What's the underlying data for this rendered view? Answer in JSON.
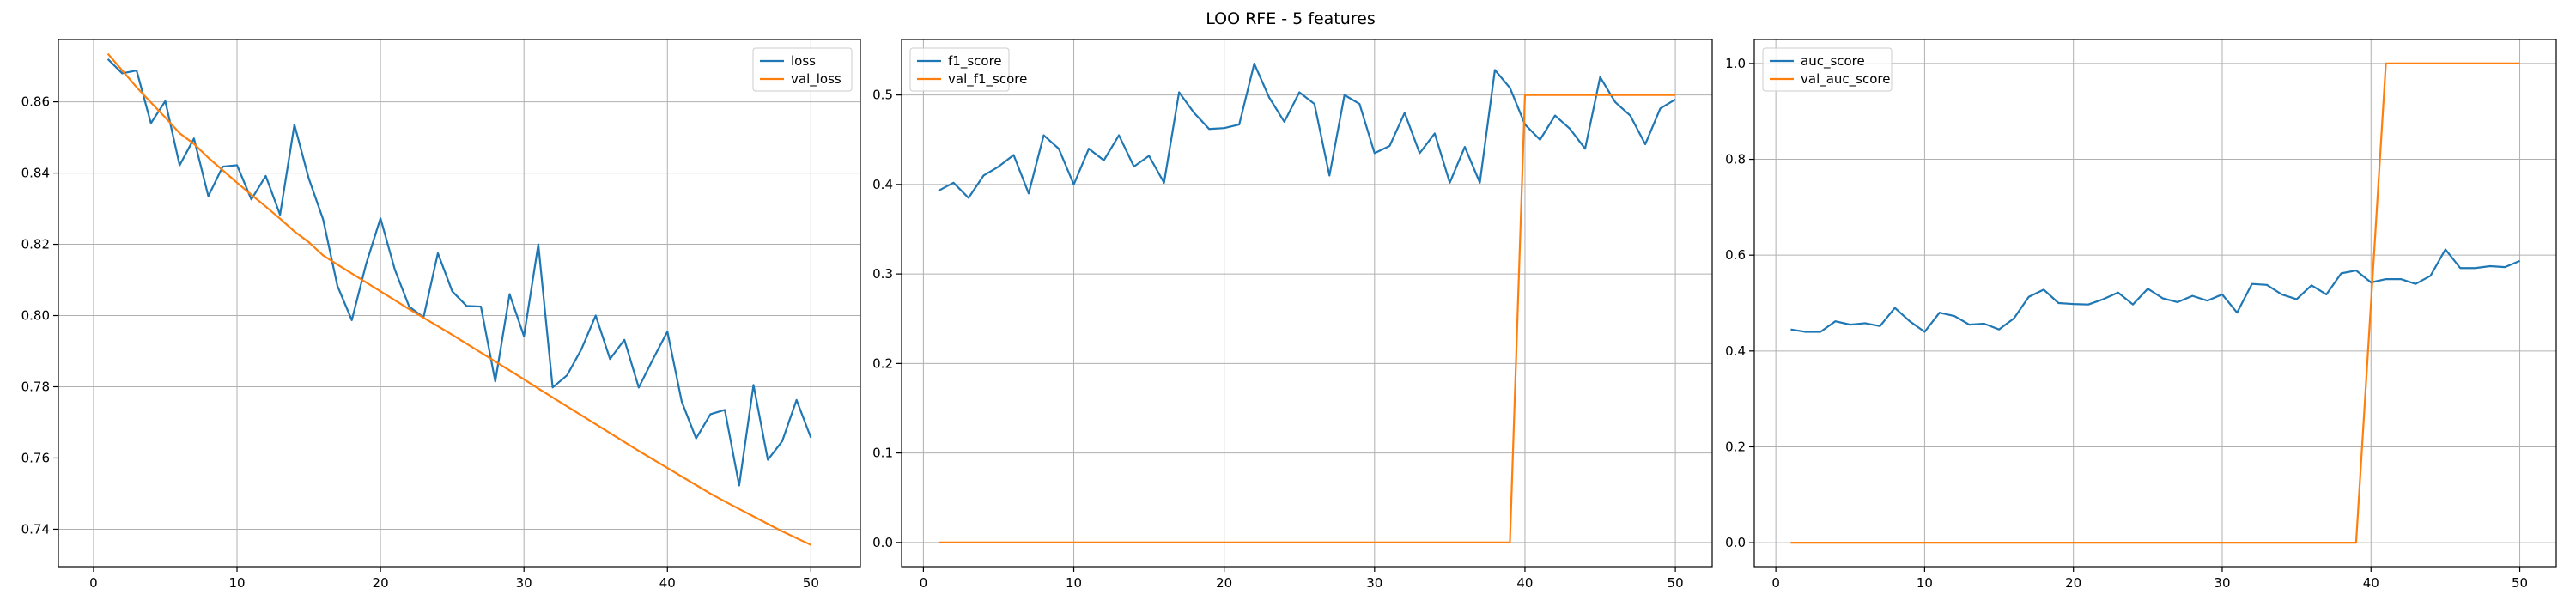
{
  "figure": {
    "title": "LOO RFE - 5 features"
  },
  "chart_data": [
    {
      "type": "line",
      "title": "",
      "xlabel": "",
      "ylabel": "",
      "xlim": [
        -2.45,
        53.45
      ],
      "ylim": [
        0.7295,
        0.8775
      ],
      "xticks": [
        0,
        10,
        20,
        30,
        40,
        50
      ],
      "yticks": [
        0.74,
        0.76,
        0.78,
        0.8,
        0.82,
        0.84,
        0.86
      ],
      "ytick_labels": [
        "0.74",
        "0.76",
        "0.78",
        "0.80",
        "0.82",
        "0.84",
        "0.86"
      ],
      "grid": true,
      "legend_position": "top-right",
      "x": [
        1,
        2,
        3,
        4,
        5,
        6,
        7,
        8,
        9,
        10,
        11,
        12,
        13,
        14,
        15,
        16,
        17,
        18,
        19,
        20,
        21,
        22,
        23,
        24,
        25,
        26,
        27,
        28,
        29,
        30,
        31,
        32,
        33,
        34,
        35,
        36,
        37,
        38,
        39,
        40,
        41,
        42,
        43,
        44,
        45,
        46,
        47,
        48,
        49,
        50
      ],
      "series": [
        {
          "name": "loss",
          "color": "#1f77b4",
          "values": [
            0.872,
            0.868,
            0.8688,
            0.854,
            0.8602,
            0.8422,
            0.8497,
            0.8335,
            0.8418,
            0.8422,
            0.8326,
            0.8392,
            0.8283,
            0.8536,
            0.8385,
            0.827,
            0.8083,
            0.7987,
            0.8145,
            0.8273,
            0.8129,
            0.8025,
            0.7995,
            0.8175,
            0.8068,
            0.8027,
            0.8025,
            0.7815,
            0.806,
            0.7942,
            0.82,
            0.7798,
            0.7832,
            0.7905,
            0.8,
            0.7878,
            0.7932,
            0.7798,
            0.7878,
            0.7955,
            0.7758,
            0.7655,
            0.7723,
            0.7735,
            0.7523,
            0.7805,
            0.7595,
            0.7647,
            0.7763,
            0.7657
          ]
        },
        {
          "name": "val_loss",
          "color": "#ff7f0e",
          "values": [
            0.8735,
            0.8688,
            0.8641,
            0.8598,
            0.8556,
            0.8512,
            0.8482,
            0.8443,
            0.8408,
            0.8373,
            0.8339,
            0.8306,
            0.8272,
            0.8236,
            0.8206,
            0.8169,
            0.8143,
            0.8118,
            0.8093,
            0.8068,
            0.8043,
            0.8018,
            0.7994,
            0.797,
            0.7946,
            0.7921,
            0.7896,
            0.7871,
            0.7846,
            0.7821,
            0.7795,
            0.777,
            0.7745,
            0.772,
            0.7695,
            0.767,
            0.7645,
            0.762,
            0.7596,
            0.7572,
            0.7548,
            0.7524,
            0.75,
            0.7478,
            0.7457,
            0.7436,
            0.7415,
            0.7394,
            0.7375,
            0.7356
          ]
        }
      ]
    },
    {
      "type": "line",
      "title": "",
      "xlabel": "",
      "ylabel": "",
      "xlim": [
        -1.45,
        52.45
      ],
      "ylim": [
        -0.027,
        0.562
      ],
      "xticks": [
        0,
        10,
        20,
        30,
        40,
        50
      ],
      "yticks": [
        0.0,
        0.1,
        0.2,
        0.3,
        0.4,
        0.5
      ],
      "ytick_labels": [
        "0.0",
        "0.1",
        "0.2",
        "0.3",
        "0.4",
        "0.5"
      ],
      "grid": true,
      "legend_position": "top-left",
      "x": [
        1,
        2,
        3,
        4,
        5,
        6,
        7,
        8,
        9,
        10,
        11,
        12,
        13,
        14,
        15,
        16,
        17,
        18,
        19,
        20,
        21,
        22,
        23,
        24,
        25,
        26,
        27,
        28,
        29,
        30,
        31,
        32,
        33,
        34,
        35,
        36,
        37,
        38,
        39,
        40,
        41,
        42,
        43,
        44,
        45,
        46,
        47,
        48,
        49,
        50
      ],
      "series": [
        {
          "name": "f1_score",
          "color": "#1f77b4",
          "values": [
            0.393,
            0.402,
            0.385,
            0.41,
            0.42,
            0.433,
            0.39,
            0.455,
            0.44,
            0.4,
            0.44,
            0.427,
            0.455,
            0.42,
            0.432,
            0.402,
            0.503,
            0.48,
            0.462,
            0.463,
            0.467,
            0.535,
            0.497,
            0.47,
            0.503,
            0.49,
            0.41,
            0.5,
            0.49,
            0.435,
            0.443,
            0.48,
            0.435,
            0.457,
            0.402,
            0.442,
            0.402,
            0.528,
            0.508,
            0.467,
            0.45,
            0.477,
            0.462,
            0.44,
            0.52,
            0.492,
            0.477,
            0.445,
            0.485,
            0.495
          ]
        },
        {
          "name": "val_f1_score",
          "color": "#ff7f0e",
          "values": [
            0,
            0,
            0,
            0,
            0,
            0,
            0,
            0,
            0,
            0,
            0,
            0,
            0,
            0,
            0,
            0,
            0,
            0,
            0,
            0,
            0,
            0,
            0,
            0,
            0,
            0,
            0,
            0,
            0,
            0,
            0,
            0,
            0,
            0,
            0,
            0,
            0,
            0,
            0,
            0.5,
            0.5,
            0.5,
            0.5,
            0.5,
            0.5,
            0.5,
            0.5,
            0.5,
            0.5,
            0.5
          ]
        }
      ]
    },
    {
      "type": "line",
      "title": "",
      "xlabel": "",
      "ylabel": "",
      "xlim": [
        -1.45,
        52.45
      ],
      "ylim": [
        -0.05,
        1.05
      ],
      "xticks": [
        0,
        10,
        20,
        30,
        40,
        50
      ],
      "yticks": [
        0.0,
        0.2,
        0.4,
        0.6,
        0.8,
        1.0
      ],
      "ytick_labels": [
        "0.0",
        "0.2",
        "0.4",
        "0.6",
        "0.8",
        "1.0"
      ],
      "grid": true,
      "legend_position": "top-left",
      "x": [
        1,
        2,
        3,
        4,
        5,
        6,
        7,
        8,
        9,
        10,
        11,
        12,
        13,
        14,
        15,
        16,
        17,
        18,
        19,
        20,
        21,
        22,
        23,
        24,
        25,
        26,
        27,
        28,
        29,
        30,
        31,
        32,
        33,
        34,
        35,
        36,
        37,
        38,
        39,
        40,
        41,
        42,
        43,
        44,
        45,
        46,
        47,
        48,
        49,
        50
      ],
      "series": [
        {
          "name": "auc_score",
          "color": "#1f77b4",
          "values": [
            0.445,
            0.44,
            0.44,
            0.462,
            0.455,
            0.458,
            0.452,
            0.49,
            0.462,
            0.44,
            0.48,
            0.473,
            0.455,
            0.457,
            0.445,
            0.468,
            0.513,
            0.528,
            0.5,
            0.498,
            0.497,
            0.508,
            0.522,
            0.497,
            0.53,
            0.51,
            0.502,
            0.515,
            0.505,
            0.518,
            0.48,
            0.54,
            0.538,
            0.518,
            0.508,
            0.537,
            0.518,
            0.562,
            0.568,
            0.543,
            0.55,
            0.55,
            0.54,
            0.557,
            0.612,
            0.573,
            0.573,
            0.577,
            0.575,
            0.588
          ]
        },
        {
          "name": "val_auc_score",
          "color": "#ff7f0e",
          "values": [
            0,
            0,
            0,
            0,
            0,
            0,
            0,
            0,
            0,
            0,
            0,
            0,
            0,
            0,
            0,
            0,
            0,
            0,
            0,
            0,
            0,
            0,
            0,
            0,
            0,
            0,
            0,
            0,
            0,
            0,
            0,
            0,
            0,
            0,
            0,
            0,
            0,
            0,
            0,
            0.5,
            1,
            1,
            1,
            1,
            1,
            1,
            1,
            1,
            1,
            1
          ]
        }
      ]
    }
  ]
}
